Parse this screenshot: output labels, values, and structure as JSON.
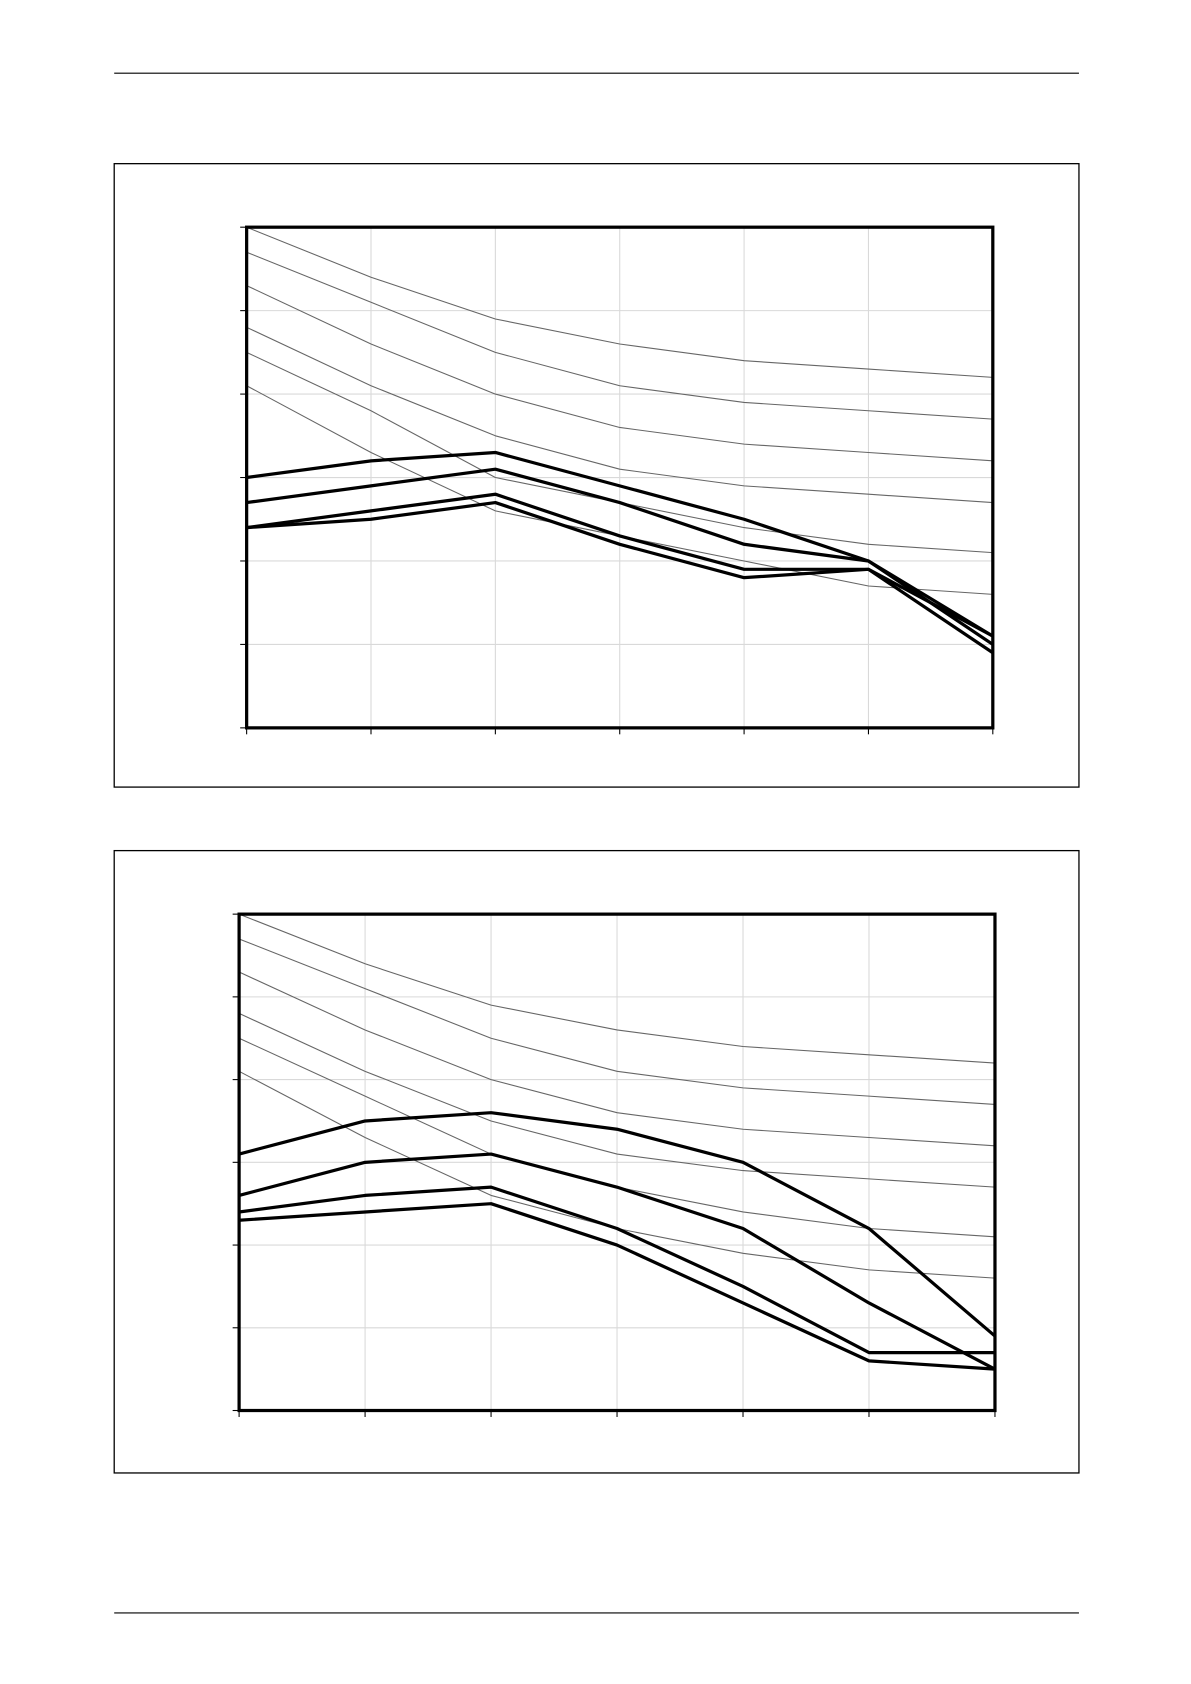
{
  "chart_data": [
    {
      "type": "line",
      "x": [
        0,
        1,
        2,
        3,
        4,
        5,
        6
      ],
      "xlim": [
        0,
        6
      ],
      "xticks": [
        0,
        1,
        2,
        3,
        4,
        5,
        6
      ],
      "ylim": [
        0,
        6
      ],
      "yticks": [
        0,
        1,
        2,
        3,
        4,
        5,
        6
      ],
      "grid": true,
      "series": [
        {
          "color": "#666666",
          "line_width": 1,
          "values": [
            6.0,
            5.4,
            4.9,
            4.6,
            4.4,
            4.3,
            4.2
          ]
        },
        {
          "color": "#666666",
          "line_width": 1,
          "values": [
            5.7,
            5.1,
            4.5,
            4.1,
            3.9,
            3.8,
            3.7
          ]
        },
        {
          "color": "#666666",
          "line_width": 1,
          "values": [
            5.3,
            4.6,
            4.0,
            3.6,
            3.4,
            3.3,
            3.2
          ]
        },
        {
          "color": "#666666",
          "line_width": 1,
          "values": [
            4.8,
            4.1,
            3.5,
            3.1,
            2.9,
            2.8,
            2.7
          ]
        },
        {
          "color": "#666666",
          "line_width": 1,
          "values": [
            4.5,
            3.8,
            3.0,
            2.7,
            2.4,
            2.2,
            2.1
          ]
        },
        {
          "color": "#666666",
          "line_width": 1,
          "values": [
            4.1,
            3.3,
            2.6,
            2.3,
            2.0,
            1.7,
            1.6
          ]
        },
        {
          "color": "#000000",
          "line_width": 3,
          "values": [
            3.0,
            3.2,
            3.3,
            2.9,
            2.5,
            2.0,
            1.1
          ]
        },
        {
          "color": "#000000",
          "line_width": 3,
          "values": [
            2.7,
            2.9,
            3.1,
            2.7,
            2.2,
            2.0,
            1.0
          ]
        },
        {
          "color": "#000000",
          "line_width": 3,
          "values": [
            2.4,
            2.6,
            2.8,
            2.3,
            1.9,
            1.9,
            1.1
          ]
        },
        {
          "color": "#000000",
          "line_width": 3,
          "values": [
            2.4,
            2.5,
            2.7,
            2.2,
            1.8,
            1.9,
            0.9
          ]
        }
      ]
    },
    {
      "type": "line",
      "x": [
        0,
        1,
        2,
        3,
        4,
        5,
        6
      ],
      "xlim": [
        0,
        6
      ],
      "xticks": [
        0,
        1,
        2,
        3,
        4,
        5,
        6
      ],
      "ylim": [
        0,
        6
      ],
      "yticks": [
        0,
        1,
        2,
        3,
        4,
        5,
        6
      ],
      "grid": true,
      "series": [
        {
          "color": "#666666",
          "line_width": 1,
          "values": [
            6.0,
            5.4,
            4.9,
            4.6,
            4.4,
            4.3,
            4.2
          ]
        },
        {
          "color": "#666666",
          "line_width": 1,
          "values": [
            5.7,
            5.1,
            4.5,
            4.1,
            3.9,
            3.8,
            3.7
          ]
        },
        {
          "color": "#666666",
          "line_width": 1,
          "values": [
            5.3,
            4.6,
            4.0,
            3.6,
            3.4,
            3.3,
            3.2
          ]
        },
        {
          "color": "#666666",
          "line_width": 1,
          "values": [
            4.8,
            4.1,
            3.5,
            3.1,
            2.9,
            2.8,
            2.7
          ]
        },
        {
          "color": "#666666",
          "line_width": 1,
          "values": [
            4.5,
            3.8,
            3.1,
            2.7,
            2.4,
            2.2,
            2.1
          ]
        },
        {
          "color": "#666666",
          "line_width": 1,
          "values": [
            4.1,
            3.3,
            2.6,
            2.2,
            1.9,
            1.7,
            1.6
          ]
        },
        {
          "color": "#000000",
          "line_width": 3,
          "values": [
            3.1,
            3.5,
            3.6,
            3.4,
            3.0,
            2.2,
            0.9
          ]
        },
        {
          "color": "#000000",
          "line_width": 3,
          "values": [
            2.6,
            3.0,
            3.1,
            2.7,
            2.2,
            1.3,
            0.5
          ]
        },
        {
          "color": "#000000",
          "line_width": 3,
          "values": [
            2.4,
            2.6,
            2.7,
            2.2,
            1.5,
            0.7,
            0.7
          ]
        },
        {
          "color": "#000000",
          "line_width": 3,
          "values": [
            2.3,
            2.4,
            2.5,
            2.0,
            1.3,
            0.6,
            0.5
          ]
        }
      ]
    }
  ]
}
